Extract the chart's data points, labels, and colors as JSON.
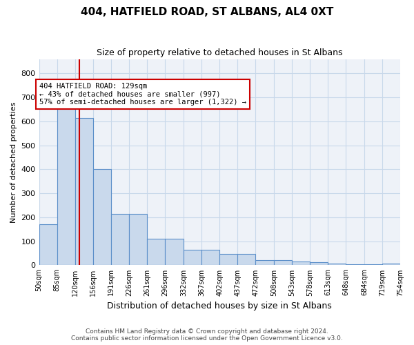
{
  "title": "404, HATFIELD ROAD, ST ALBANS, AL4 0XT",
  "subtitle": "Size of property relative to detached houses in St Albans",
  "xlabel": "Distribution of detached houses by size in St Albans",
  "ylabel": "Number of detached properties",
  "footnote1": "Contains HM Land Registry data © Crown copyright and database right 2024.",
  "footnote2": "Contains public sector information licensed under the Open Government Licence v3.0.",
  "bar_color": "#c9d9ec",
  "bar_edge_color": "#5b8fc9",
  "grid_color": "#c8d8ea",
  "annotation_box_color": "#cc0000",
  "vline_color": "#cc0000",
  "annotation_text": "404 HATFIELD ROAD: 129sqm\n← 43% of detached houses are smaller (997)\n57% of semi-detached houses are larger (1,322) →",
  "property_size": 129,
  "bin_edges": [
    50,
    85,
    120,
    156,
    191,
    226,
    261,
    296,
    332,
    367,
    402,
    437,
    472,
    508,
    543,
    578,
    613,
    648,
    684,
    719,
    754
  ],
  "bin_counts": [
    170,
    660,
    615,
    400,
    215,
    215,
    110,
    110,
    65,
    65,
    47,
    47,
    20,
    20,
    15,
    12,
    7,
    5,
    5,
    7
  ],
  "ylim": [
    0,
    860
  ],
  "yticks": [
    0,
    100,
    200,
    300,
    400,
    500,
    600,
    700,
    800
  ],
  "background_color": "#eef2f8"
}
